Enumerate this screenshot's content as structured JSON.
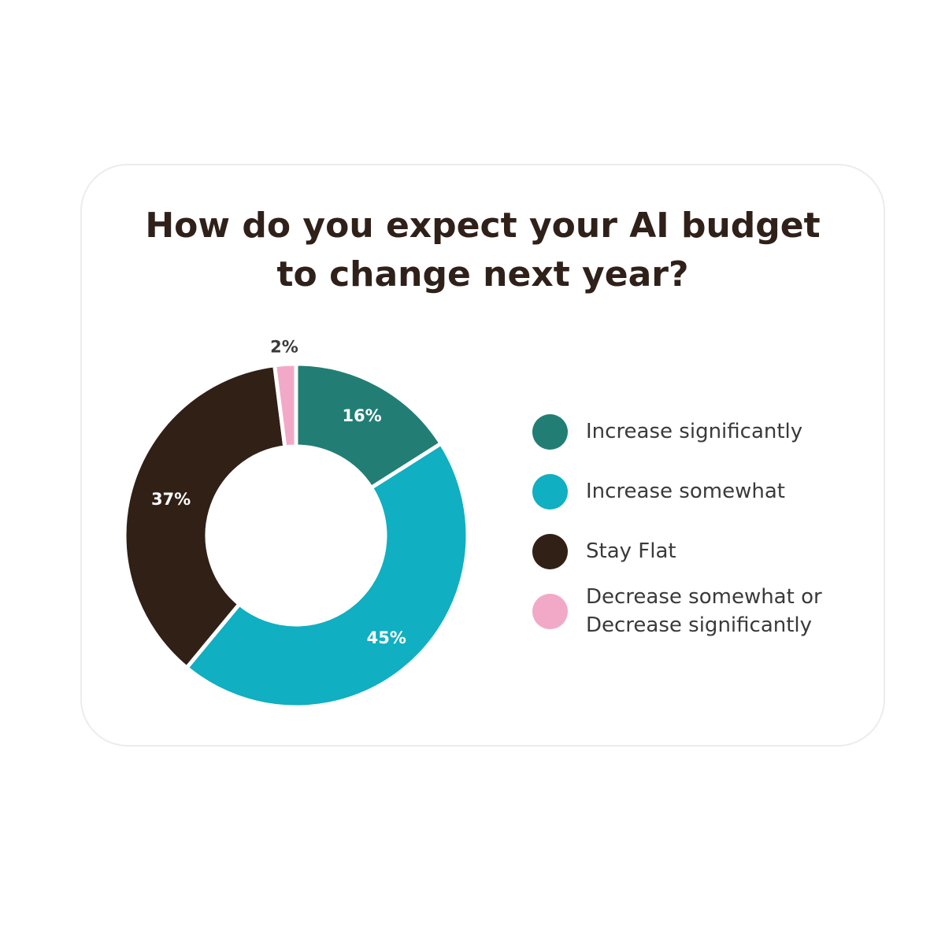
{
  "chart_data": {
    "type": "pie",
    "title": "How do you expect your AI budget\nto change next year?",
    "donut": true,
    "categories": [
      "Increase significantly",
      "Increase somewhat",
      "Stay Flat",
      "Decrease somewhat or\nDecrease significantly"
    ],
    "values": [
      16,
      45,
      37,
      2
    ],
    "value_labels": [
      "16%",
      "45%",
      "37%",
      "2%"
    ],
    "colors": [
      "#227e74",
      "#10afc1",
      "#312016",
      "#f2a9c8"
    ],
    "label_colors": [
      "#ffffff",
      "#ffffff",
      "#ffffff",
      "#3a3a3a"
    ],
    "legend": "right"
  }
}
